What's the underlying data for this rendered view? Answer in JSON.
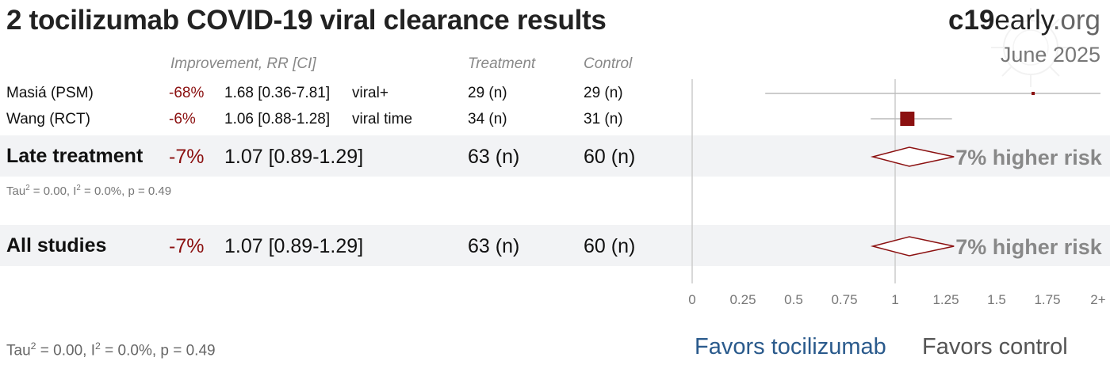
{
  "title": "2 tocilizumab COVID-19 viral clearance results",
  "brand": {
    "bold": "c19",
    "rest": "early",
    "tld": ".org"
  },
  "date": "June 2025",
  "headers": {
    "improvement": "Improvement, RR [CI]",
    "treatment": "Treatment",
    "control": "Control"
  },
  "studies": [
    {
      "name": "Masiá (PSM)",
      "improvement": "-68%",
      "rr_ci": "1.68 [0.36-7.81]",
      "outcome": "viral+",
      "treatment": "29 (n)",
      "control": "29 (n)"
    },
    {
      "name": "Wang (RCT)",
      "improvement": "-6%",
      "rr_ci": "1.06 [0.88-1.28]",
      "outcome": "viral time",
      "treatment": "34 (n)",
      "control": "31 (n)"
    }
  ],
  "subtotal": {
    "name": "Late treatment",
    "improvement": "-7%",
    "rr_ci": "1.07 [0.89-1.29]",
    "treatment": "63 (n)",
    "control": "60 (n)",
    "risk_label": "7% higher risk",
    "stat_tau": "Tau",
    "stat_i": " = 0.00, I",
    "stat_rest": " = 0.0%, p = 0.49"
  },
  "total": {
    "name": "All studies",
    "improvement": "-7%",
    "rr_ci": "1.07 [0.89-1.29]",
    "treatment": "63 (n)",
    "control": "60 (n)",
    "risk_label": "7% higher risk",
    "stat_tau": "Tau",
    "stat_i": " = 0.00, I",
    "stat_rest": " = 0.0%, p = 0.49"
  },
  "favors": {
    "left": "Favors tocilizumab",
    "right": "Favors control"
  },
  "colors": {
    "estimate": "#8b1010",
    "favors_left": "#2a5a8c",
    "band": "#f2f3f5"
  },
  "chart_data": {
    "type": "forest",
    "x_ticks": [
      "0",
      "0.25",
      "0.5",
      "0.75",
      "1",
      "1.25",
      "1.5",
      "1.75",
      "2+"
    ],
    "xlim": [
      0,
      2
    ],
    "reference_line": 1,
    "rows": [
      {
        "label": "Masiá (PSM)",
        "rr": 1.68,
        "ci": [
          0.36,
          7.81
        ],
        "marker": "square-small"
      },
      {
        "label": "Wang (RCT)",
        "rr": 1.06,
        "ci": [
          0.88,
          1.28
        ],
        "marker": "square"
      },
      {
        "label": "Late treatment",
        "rr": 1.07,
        "ci": [
          0.89,
          1.29
        ],
        "marker": "diamond"
      },
      {
        "label": "All studies",
        "rr": 1.07,
        "ci": [
          0.89,
          1.29
        ],
        "marker": "diamond"
      }
    ]
  }
}
